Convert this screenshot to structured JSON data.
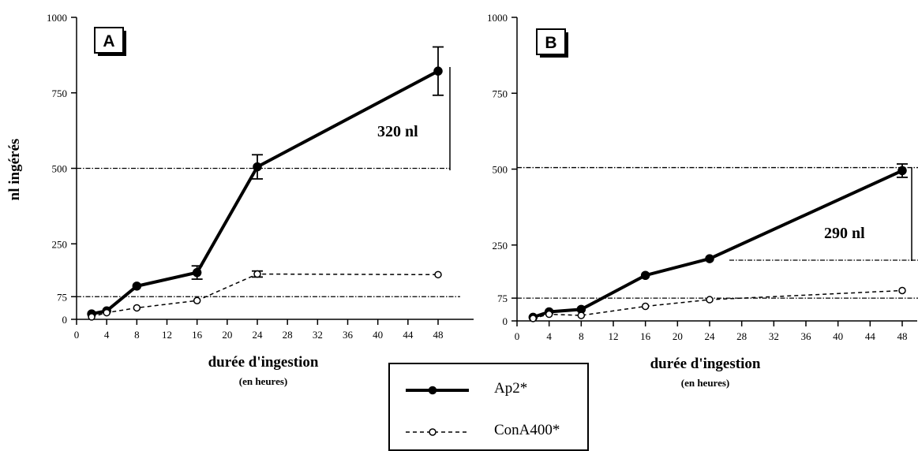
{
  "y_axis_label": "nl ingérés",
  "chart_data": [
    {
      "type": "line",
      "panel_label": "A",
      "xlabel": "durée d'ingestion",
      "xlabel_sub": "(en  heures)",
      "xlim": [
        0,
        50
      ],
      "ylim": [
        0,
        1000
      ],
      "x_ticks": [
        0,
        4,
        8,
        12,
        16,
        20,
        24,
        28,
        32,
        36,
        40,
        44,
        48
      ],
      "y_ticks": [
        0,
        75,
        250,
        500,
        750,
        1000
      ],
      "grid": false,
      "series": [
        {
          "name": "Ap2*",
          "x": [
            2,
            4,
            8,
            16,
            24,
            48
          ],
          "y": [
            18,
            28,
            110,
            155,
            505,
            822
          ],
          "err": [
            0,
            0,
            0,
            22,
            40,
            80
          ]
        },
        {
          "name": "ConA400*",
          "x": [
            2,
            4,
            8,
            16,
            24,
            48
          ],
          "y": [
            8,
            22,
            38,
            62,
            150,
            148
          ],
          "err": [
            0,
            0,
            0,
            0,
            10,
            0
          ]
        }
      ],
      "reference_lines": [
        500,
        75
      ],
      "annotation": "320 nl"
    },
    {
      "type": "line",
      "panel_label": "B",
      "xlabel": "durée d'ingestion",
      "xlabel_sub": "(en  heures)",
      "xlim": [
        0,
        50
      ],
      "ylim": [
        0,
        1000
      ],
      "x_ticks": [
        0,
        4,
        8,
        12,
        16,
        20,
        24,
        28,
        32,
        36,
        40,
        44,
        48
      ],
      "y_ticks": [
        0,
        75,
        250,
        500,
        750,
        1000
      ],
      "grid": false,
      "series": [
        {
          "name": "Ap2*",
          "x": [
            2,
            4,
            8,
            16,
            24,
            48
          ],
          "y": [
            12,
            30,
            38,
            150,
            205,
            495
          ],
          "err": [
            0,
            0,
            0,
            0,
            0,
            22
          ]
        },
        {
          "name": "ConA400*",
          "x": [
            2,
            4,
            8,
            16,
            24,
            48
          ],
          "y": [
            8,
            22,
            18,
            48,
            70,
            100
          ],
          "err": [
            0,
            0,
            0,
            0,
            0,
            0
          ]
        }
      ],
      "reference_lines": [
        505,
        200,
        75
      ],
      "annotation": "290  nl"
    }
  ],
  "legend": [
    {
      "label": "Ap2*",
      "style": "solid"
    },
    {
      "label": "ConA400*",
      "style": "dashed"
    }
  ]
}
